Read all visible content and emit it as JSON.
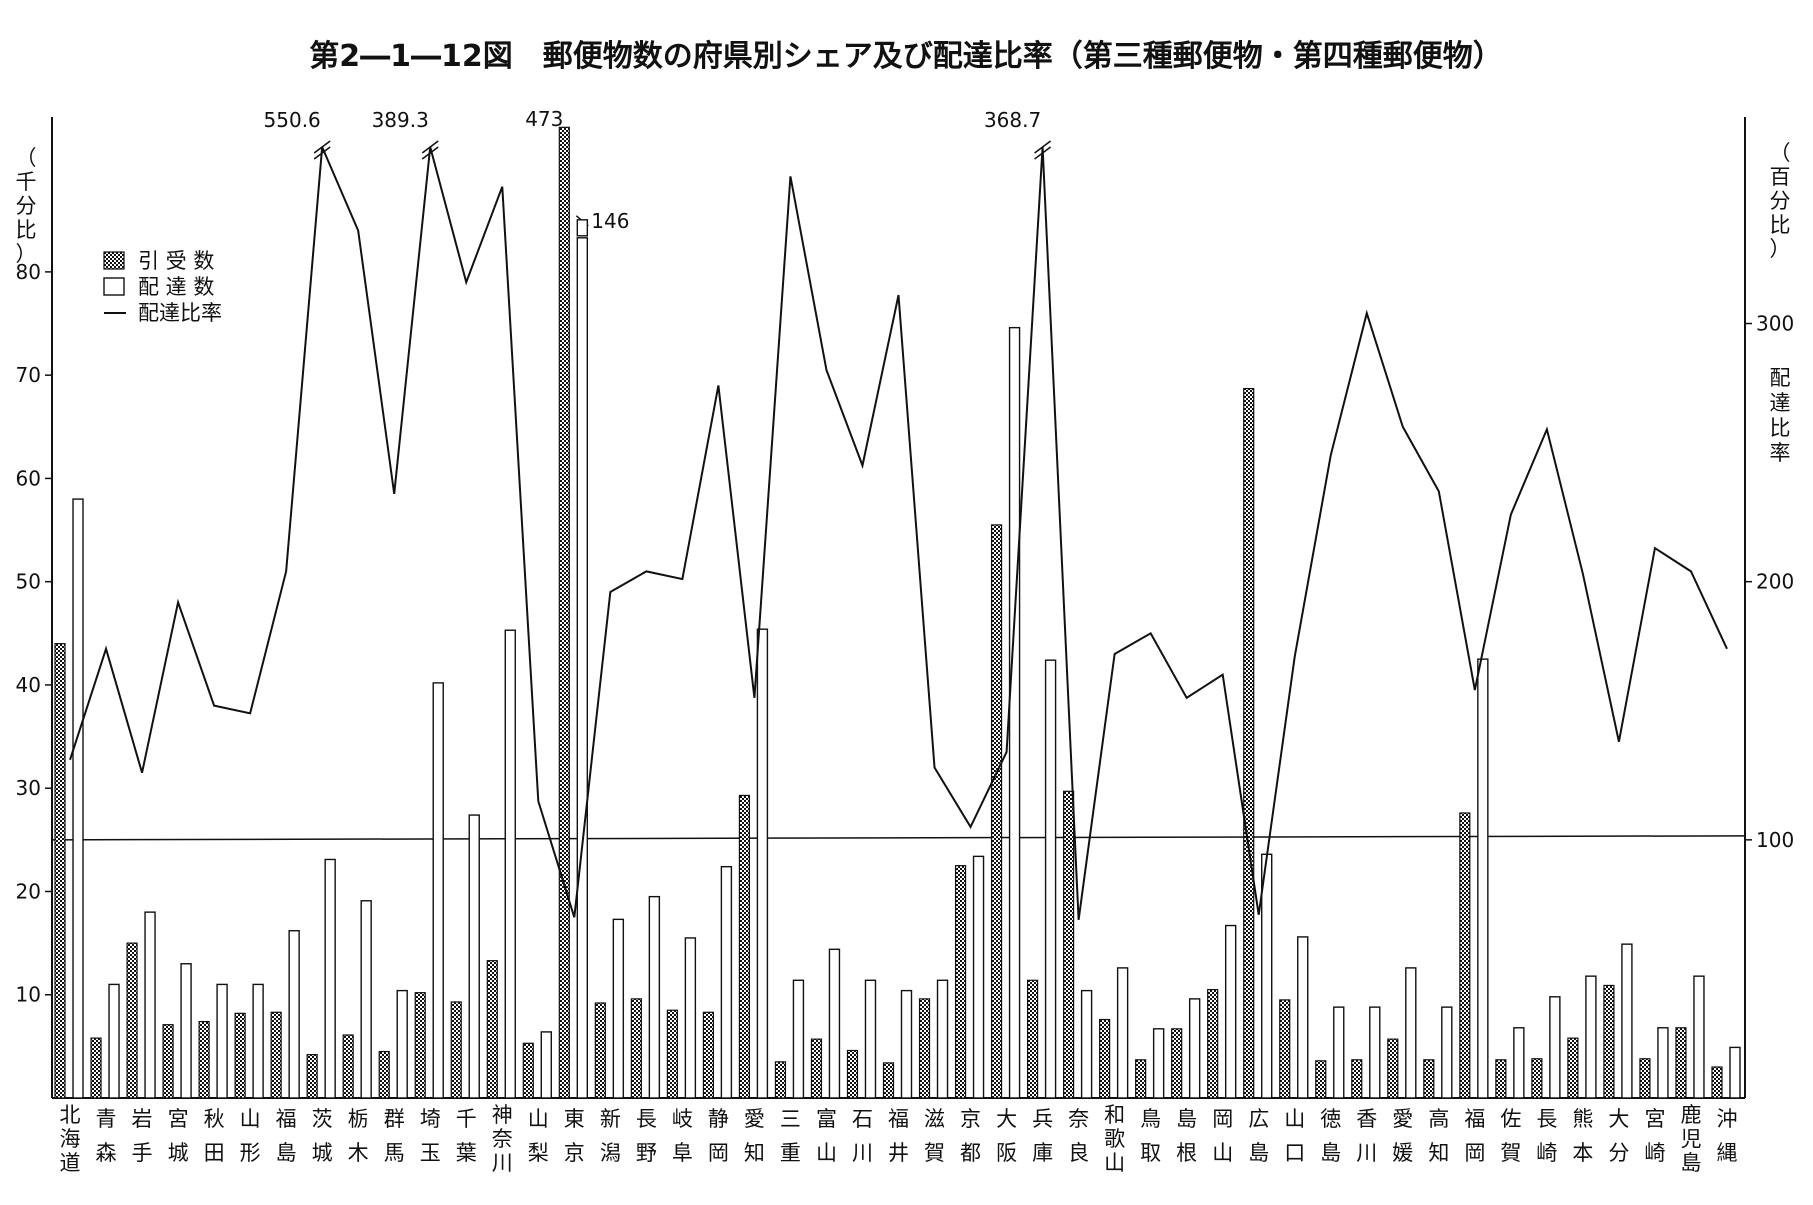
{
  "chart_data": {
    "type": "bar",
    "title": "第2―1―12図　郵便物数の府県別シェア及び配達比率（第三種郵便物・第四種郵便物）",
    "left_axis_label": [
      "（",
      "千",
      "分",
      "比",
      "）"
    ],
    "right_axis_label_top": [
      "（",
      "百",
      "分",
      "比",
      "）"
    ],
    "right_axis_label_side": [
      "配",
      "達",
      "比",
      "率"
    ],
    "left_ylim": [
      0,
      95
    ],
    "left_ticks": [
      10,
      20,
      30,
      40,
      50,
      60,
      70,
      80
    ],
    "right_ylim": [
      0,
      380
    ],
    "right_ticks": [
      100,
      200,
      300
    ],
    "reference_line": 100,
    "legend": [
      "引 受 数",
      "配 達 数",
      "配達比率"
    ],
    "categories": [
      "北海道",
      "青森",
      "岩手",
      "宮城",
      "秋田",
      "山形",
      "福島",
      "茨城",
      "栃木",
      "群馬",
      "埼玉",
      "千葉",
      "神奈川",
      "山梨",
      "東京",
      "新潟",
      "長野",
      "岐阜",
      "静岡",
      "愛知",
      "三重",
      "富山",
      "石川",
      "福井",
      "滋賀",
      "京都",
      "大阪",
      "兵庫",
      "奈良",
      "和歌山",
      "鳥取",
      "島根",
      "岡山",
      "広島",
      "山口",
      "徳島",
      "香川",
      "愛媛",
      "高知",
      "福岡",
      "佐賀",
      "長崎",
      "熊本",
      "大分",
      "宮崎",
      "鹿児島",
      "沖縄"
    ],
    "series": [
      {
        "name": "引 受 数",
        "values": [
          44.0,
          5.8,
          15.0,
          7.1,
          7.4,
          8.2,
          8.3,
          4.2,
          6.1,
          4.5,
          10.2,
          9.3,
          13.3,
          5.3,
          94.0,
          9.2,
          9.6,
          8.5,
          8.3,
          29.3,
          3.5,
          5.7,
          4.6,
          3.4,
          9.6,
          22.5,
          55.5,
          11.4,
          29.7,
          7.6,
          3.7,
          6.7,
          10.5,
          68.7,
          9.5,
          3.6,
          3.7,
          5.7,
          3.7,
          27.6,
          3.7,
          3.8,
          5.8,
          10.9,
          3.8,
          6.8,
          3.0
        ]
      },
      {
        "name": "配 達 数",
        "values": [
          58.0,
          11.0,
          18.0,
          13.0,
          11.0,
          11.0,
          16.2,
          23.1,
          19.1,
          10.4,
          40.2,
          27.4,
          45.3,
          6.4,
          83.3,
          17.3,
          19.5,
          15.5,
          22.4,
          45.4,
          11.4,
          14.4,
          11.4,
          10.4,
          11.4,
          23.4,
          74.6,
          42.4,
          10.4,
          12.6,
          6.7,
          9.6,
          16.7,
          23.6,
          15.6,
          8.8,
          8.8,
          12.6,
          8.8,
          42.5,
          6.8,
          9.8,
          11.8,
          14.9,
          6.8,
          11.8,
          4.9
        ]
      },
      {
        "name": "配達比率",
        "values": [
          131,
          174,
          126,
          192,
          152,
          149,
          204,
          550.6,
          336,
          234,
          389.3,
          316,
          353,
          115,
          70,
          196,
          204,
          201,
          276,
          155,
          357,
          282,
          245,
          311,
          128,
          105,
          134,
          368.7,
          69,
          172,
          180,
          155,
          164,
          71,
          171,
          249,
          304,
          260,
          235,
          158,
          226,
          259,
          203,
          138,
          213,
          204,
          174
        ]
      }
    ],
    "bar_annotations": [
      {
        "category": "東京",
        "series": "引 受 数",
        "label": "473"
      },
      {
        "category": "東京",
        "series": "配 達 数",
        "label": "146"
      }
    ],
    "line_annotations": [
      {
        "category": "茨城",
        "label": "550.6"
      },
      {
        "category": "埼玉",
        "label": "389.3"
      },
      {
        "category": "兵庫",
        "label": "368.7"
      }
    ]
  }
}
